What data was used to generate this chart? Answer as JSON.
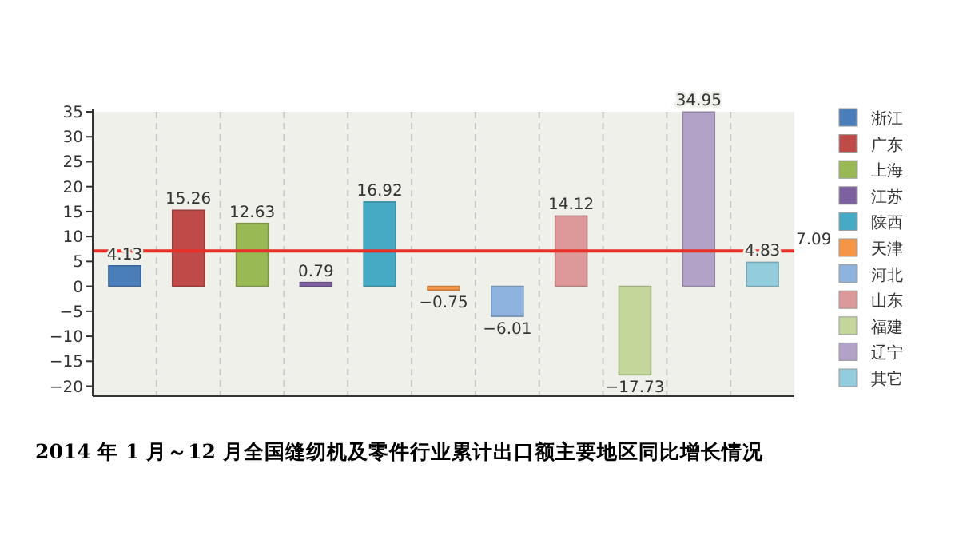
{
  "chart_data": {
    "type": "bar",
    "title": "2014 年 1 月～12 月全国缝纫机及零件行业累计出口额主要地区同比增长情况",
    "categories": [
      null,
      null,
      null,
      null,
      null,
      null,
      null,
      null,
      null,
      null,
      null
    ],
    "series": [
      {
        "name": "浙江",
        "color": "#4a7ebb",
        "values": [
          4.13,
          null,
          null,
          null,
          null,
          null,
          null,
          null,
          null,
          null,
          null
        ]
      },
      {
        "name": "广东",
        "color": "#be4b48",
        "values": [
          null,
          15.26,
          null,
          null,
          null,
          null,
          null,
          null,
          null,
          null,
          null
        ]
      },
      {
        "name": "上海",
        "color": "#98b954",
        "values": [
          null,
          null,
          12.63,
          null,
          null,
          null,
          null,
          null,
          null,
          null,
          null
        ]
      },
      {
        "name": "江苏",
        "color": "#7d60a0",
        "values": [
          null,
          null,
          null,
          0.79,
          null,
          null,
          null,
          null,
          null,
          null,
          null
        ]
      },
      {
        "name": "陕西",
        "color": "#46aac5",
        "values": [
          null,
          null,
          null,
          null,
          16.92,
          null,
          null,
          null,
          null,
          null,
          null
        ]
      },
      {
        "name": "天津",
        "color": "#f59646",
        "values": [
          null,
          null,
          null,
          null,
          null,
          -0.75,
          null,
          null,
          null,
          null,
          null
        ]
      },
      {
        "name": "河北",
        "color": "#8eb3de",
        "values": [
          null,
          null,
          null,
          null,
          null,
          null,
          -6.01,
          null,
          null,
          null,
          null
        ]
      },
      {
        "name": "山东",
        "color": "#dd9999",
        "values": [
          null,
          null,
          null,
          null,
          null,
          null,
          null,
          14.12,
          null,
          null,
          null
        ]
      },
      {
        "name": "福建",
        "color": "#c3d79b",
        "values": [
          null,
          null,
          null,
          null,
          null,
          null,
          null,
          null,
          -17.73,
          null,
          null
        ]
      },
      {
        "name": "辽宁",
        "color": "#b2a2c7",
        "values": [
          null,
          null,
          null,
          null,
          null,
          null,
          null,
          null,
          null,
          34.95,
          null
        ]
      },
      {
        "name": "其它",
        "color": "#93cddd",
        "values": [
          null,
          null,
          null,
          null,
          null,
          null,
          null,
          null,
          null,
          null,
          4.83
        ]
      }
    ],
    "ylim": [
      -22,
      35
    ],
    "yticks": [
      -20,
      -15,
      -10,
      -5,
      0,
      5,
      10,
      15,
      20,
      25,
      30,
      35
    ],
    "ref_lines": [
      {
        "axis": "y",
        "value": 7.09,
        "label": "7.09",
        "color": "#e8302a"
      }
    ],
    "data_labels": true,
    "grid": "x",
    "legend": "right",
    "tick_labels": "y"
  }
}
